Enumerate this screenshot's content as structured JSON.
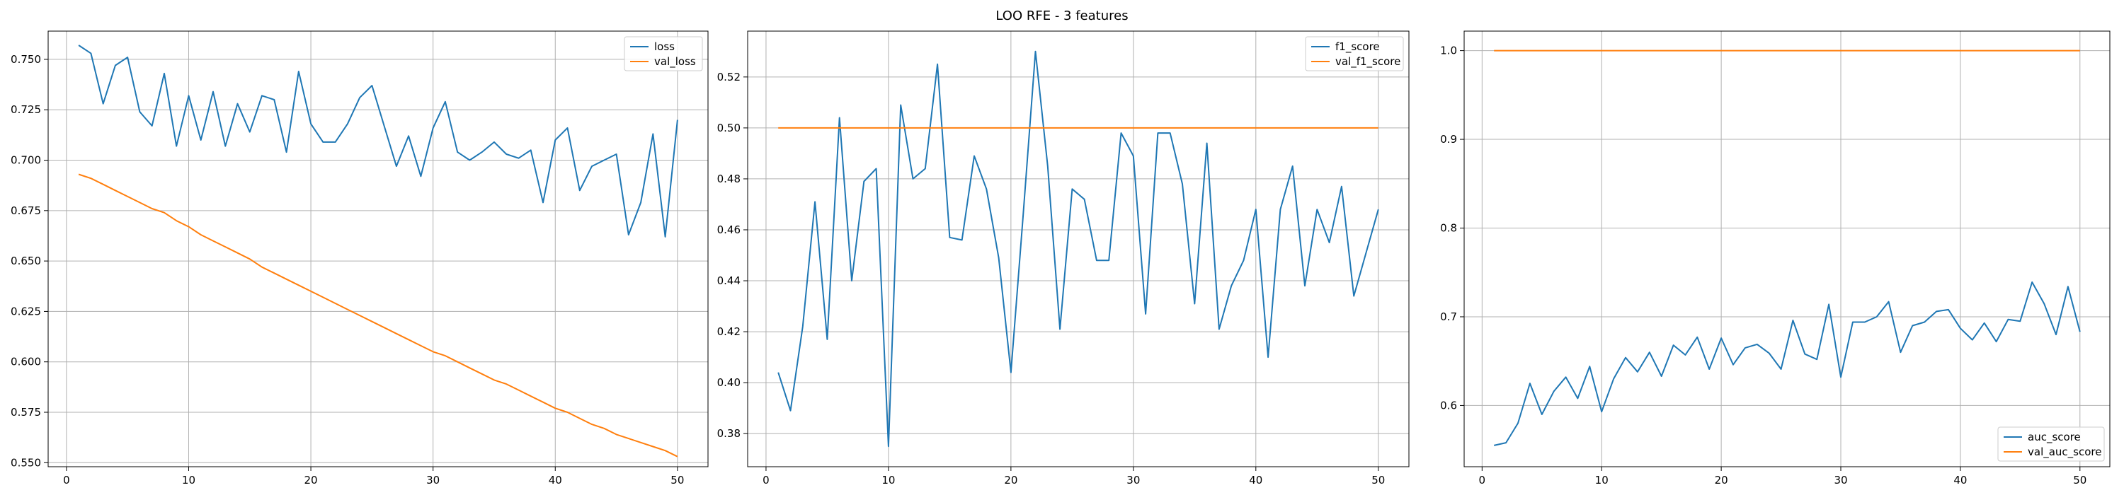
{
  "figure": {
    "title": "LOO RFE - 3 features"
  },
  "colors": {
    "series1": "#1f77b4",
    "series2": "#ff7f0e",
    "grid": "#b0b0b0",
    "axis": "#000000"
  },
  "chart_data": [
    {
      "type": "line",
      "title": "",
      "xlabel": "",
      "ylabel": "",
      "grid": true,
      "legend": "top-right",
      "xlim": [
        -1.5,
        52.5
      ],
      "ylim": [
        0.548,
        0.764
      ],
      "xticks": [
        0,
        10,
        20,
        30,
        40,
        50
      ],
      "yticks": [
        0.55,
        0.575,
        0.6,
        0.625,
        0.65,
        0.675,
        0.7,
        0.725,
        0.75
      ],
      "ytick_decimals": 3,
      "x": [
        1,
        2,
        3,
        4,
        5,
        6,
        7,
        8,
        9,
        10,
        11,
        12,
        13,
        14,
        15,
        16,
        17,
        18,
        19,
        20,
        21,
        22,
        23,
        24,
        25,
        26,
        27,
        28,
        29,
        30,
        31,
        32,
        33,
        34,
        35,
        36,
        37,
        38,
        39,
        40,
        41,
        42,
        43,
        44,
        45,
        46,
        47,
        48,
        49,
        50
      ],
      "series": [
        {
          "name": "loss",
          "values": [
            0.757,
            0.753,
            0.728,
            0.747,
            0.751,
            0.724,
            0.717,
            0.743,
            0.707,
            0.732,
            0.71,
            0.734,
            0.707,
            0.728,
            0.714,
            0.732,
            0.73,
            0.704,
            0.744,
            0.718,
            0.709,
            0.709,
            0.718,
            0.731,
            0.737,
            0.717,
            0.697,
            0.712,
            0.692,
            0.716,
            0.729,
            0.704,
            0.7,
            0.704,
            0.709,
            0.703,
            0.701,
            0.705,
            0.679,
            0.71,
            0.716,
            0.685,
            0.697,
            0.7,
            0.703,
            0.663,
            0.679,
            0.713,
            0.662,
            0.72
          ]
        },
        {
          "name": "val_loss",
          "values": [
            0.693,
            0.691,
            0.688,
            0.685,
            0.682,
            0.679,
            0.676,
            0.674,
            0.67,
            0.667,
            0.663,
            0.66,
            0.657,
            0.654,
            0.651,
            0.647,
            0.644,
            0.641,
            0.638,
            0.635,
            0.632,
            0.629,
            0.626,
            0.623,
            0.62,
            0.617,
            0.614,
            0.611,
            0.608,
            0.605,
            0.603,
            0.6,
            0.597,
            0.594,
            0.591,
            0.589,
            0.586,
            0.583,
            0.58,
            0.577,
            0.575,
            0.572,
            0.569,
            0.567,
            0.564,
            0.562,
            0.56,
            0.558,
            0.556,
            0.553
          ]
        }
      ]
    },
    {
      "type": "line",
      "title": "",
      "xlabel": "",
      "ylabel": "",
      "grid": true,
      "legend": "top-right",
      "xlim": [
        -1.5,
        52.5
      ],
      "ylim": [
        0.367,
        0.538
      ],
      "xticks": [
        0,
        10,
        20,
        30,
        40,
        50
      ],
      "yticks": [
        0.38,
        0.4,
        0.42,
        0.44,
        0.46,
        0.48,
        0.5,
        0.52
      ],
      "ytick_decimals": 2,
      "x": [
        1,
        2,
        3,
        4,
        5,
        6,
        7,
        8,
        9,
        10,
        11,
        12,
        13,
        14,
        15,
        16,
        17,
        18,
        19,
        20,
        21,
        22,
        23,
        24,
        25,
        26,
        27,
        28,
        29,
        30,
        31,
        32,
        33,
        34,
        35,
        36,
        37,
        38,
        39,
        40,
        41,
        42,
        43,
        44,
        45,
        46,
        47,
        48,
        49,
        50
      ],
      "series": [
        {
          "name": "f1_score",
          "values": [
            0.404,
            0.389,
            0.422,
            0.471,
            0.417,
            0.504,
            0.44,
            0.479,
            0.484,
            0.375,
            0.509,
            0.48,
            0.484,
            0.525,
            0.457,
            0.456,
            0.489,
            0.476,
            0.449,
            0.404,
            0.466,
            0.53,
            0.485,
            0.421,
            0.476,
            0.472,
            0.448,
            0.448,
            0.498,
            0.489,
            0.427,
            0.498,
            0.498,
            0.478,
            0.431,
            0.494,
            0.421,
            0.438,
            0.448,
            0.468,
            0.41,
            0.468,
            0.485,
            0.438,
            0.468,
            0.455,
            0.477,
            0.434,
            0.451,
            0.468
          ]
        },
        {
          "name": "val_f1_score",
          "values": [
            0.5,
            0.5,
            0.5,
            0.5,
            0.5,
            0.5,
            0.5,
            0.5,
            0.5,
            0.5,
            0.5,
            0.5,
            0.5,
            0.5,
            0.5,
            0.5,
            0.5,
            0.5,
            0.5,
            0.5,
            0.5,
            0.5,
            0.5,
            0.5,
            0.5,
            0.5,
            0.5,
            0.5,
            0.5,
            0.5,
            0.5,
            0.5,
            0.5,
            0.5,
            0.5,
            0.5,
            0.5,
            0.5,
            0.5,
            0.5,
            0.5,
            0.5,
            0.5,
            0.5,
            0.5,
            0.5,
            0.5,
            0.5,
            0.5,
            0.5
          ]
        }
      ]
    },
    {
      "type": "line",
      "title": "",
      "xlabel": "",
      "ylabel": "",
      "grid": true,
      "legend": "bottom-right",
      "xlim": [
        -1.5,
        52.5
      ],
      "ylim": [
        0.531,
        1.022
      ],
      "xticks": [
        0,
        10,
        20,
        30,
        40,
        50
      ],
      "yticks": [
        0.6,
        0.7,
        0.8,
        0.9,
        1.0
      ],
      "ytick_decimals": 1,
      "x": [
        1,
        2,
        3,
        4,
        5,
        6,
        7,
        8,
        9,
        10,
        11,
        12,
        13,
        14,
        15,
        16,
        17,
        18,
        19,
        20,
        21,
        22,
        23,
        24,
        25,
        26,
        27,
        28,
        29,
        30,
        31,
        32,
        33,
        34,
        35,
        36,
        37,
        38,
        39,
        40,
        41,
        42,
        43,
        44,
        45,
        46,
        47,
        48,
        49,
        50
      ],
      "series": [
        {
          "name": "auc_score",
          "values": [
            0.555,
            0.558,
            0.58,
            0.625,
            0.59,
            0.616,
            0.632,
            0.608,
            0.644,
            0.593,
            0.63,
            0.654,
            0.638,
            0.66,
            0.633,
            0.668,
            0.657,
            0.677,
            0.641,
            0.676,
            0.646,
            0.665,
            0.669,
            0.659,
            0.641,
            0.696,
            0.658,
            0.652,
            0.714,
            0.632,
            0.694,
            0.694,
            0.7,
            0.717,
            0.66,
            0.69,
            0.694,
            0.706,
            0.708,
            0.687,
            0.674,
            0.693,
            0.672,
            0.697,
            0.695,
            0.739,
            0.715,
            0.68,
            0.734,
            0.683
          ]
        },
        {
          "name": "val_auc_score",
          "values": [
            1.0,
            1.0,
            1.0,
            1.0,
            1.0,
            1.0,
            1.0,
            1.0,
            1.0,
            1.0,
            1.0,
            1.0,
            1.0,
            1.0,
            1.0,
            1.0,
            1.0,
            1.0,
            1.0,
            1.0,
            1.0,
            1.0,
            1.0,
            1.0,
            1.0,
            1.0,
            1.0,
            1.0,
            1.0,
            1.0,
            1.0,
            1.0,
            1.0,
            1.0,
            1.0,
            1.0,
            1.0,
            1.0,
            1.0,
            1.0,
            1.0,
            1.0,
            1.0,
            1.0,
            1.0,
            1.0,
            1.0,
            1.0,
            1.0,
            1.0
          ]
        }
      ]
    }
  ]
}
